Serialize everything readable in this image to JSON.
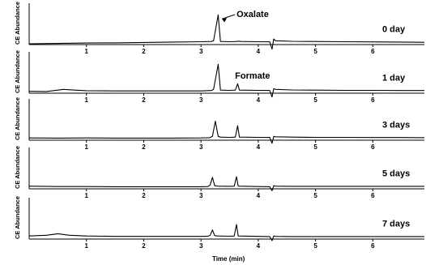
{
  "chart_data": {
    "type": "line",
    "layout": "stacked-panels",
    "x_range": [
      0,
      6.9
    ],
    "x_ticks": [
      "1",
      "2",
      "3",
      "4",
      "5",
      "6"
    ],
    "xlabel": "Time (min)",
    "ylabel": "CE Abundance",
    "grid": false,
    "panels": [
      {
        "label": "0 day",
        "points": [
          [
            0,
            0.02
          ],
          [
            0.5,
            0.03
          ],
          [
            1.0,
            0.04
          ],
          [
            1.5,
            0.045
          ],
          [
            2.0,
            0.055
          ],
          [
            2.5,
            0.065
          ],
          [
            3.0,
            0.075
          ],
          [
            3.18,
            0.08
          ],
          [
            3.22,
            0.1
          ],
          [
            3.3,
            0.78
          ],
          [
            3.34,
            0.08
          ],
          [
            3.5,
            0.075
          ],
          [
            3.62,
            0.08
          ],
          [
            3.66,
            0.09
          ],
          [
            3.7,
            0.08
          ],
          [
            4.0,
            0.075
          ],
          [
            4.2,
            0.072
          ],
          [
            4.24,
            -0.12
          ],
          [
            4.27,
            0.15
          ],
          [
            4.3,
            0.1
          ],
          [
            4.6,
            0.085
          ],
          [
            5.0,
            0.08
          ],
          [
            5.5,
            0.075
          ],
          [
            6.0,
            0.07
          ],
          [
            6.5,
            0.065
          ],
          [
            6.9,
            0.06
          ]
        ],
        "annotations": [
          {
            "text": "Oxalate",
            "at": [
              3.31,
              0.8
            ]
          }
        ]
      },
      {
        "label": "1 day",
        "points": [
          [
            0,
            0.05
          ],
          [
            0.3,
            0.045
          ],
          [
            0.6,
            0.1
          ],
          [
            0.8,
            0.08
          ],
          [
            1.0,
            0.065
          ],
          [
            1.5,
            0.06
          ],
          [
            2.0,
            0.06
          ],
          [
            2.5,
            0.06
          ],
          [
            3.0,
            0.06
          ],
          [
            3.18,
            0.07
          ],
          [
            3.22,
            0.1
          ],
          [
            3.3,
            0.76
          ],
          [
            3.34,
            0.08
          ],
          [
            3.5,
            0.075
          ],
          [
            3.6,
            0.08
          ],
          [
            3.64,
            0.25
          ],
          [
            3.67,
            0.08
          ],
          [
            4.0,
            0.075
          ],
          [
            4.2,
            0.072
          ],
          [
            4.24,
            -0.1
          ],
          [
            4.27,
            0.12
          ],
          [
            4.3,
            0.1
          ],
          [
            4.6,
            0.085
          ],
          [
            5.0,
            0.08
          ],
          [
            5.5,
            0.075
          ],
          [
            6.0,
            0.075
          ],
          [
            6.5,
            0.07
          ],
          [
            6.9,
            0.07
          ]
        ],
        "annotations": [
          {
            "text": "Formate",
            "at": [
              3.65,
              0.27
            ]
          }
        ]
      },
      {
        "label": "3 days",
        "points": [
          [
            0,
            0.06
          ],
          [
            0.5,
            0.055
          ],
          [
            1.0,
            0.06
          ],
          [
            1.5,
            0.055
          ],
          [
            2.0,
            0.055
          ],
          [
            2.5,
            0.055
          ],
          [
            3.0,
            0.06
          ],
          [
            3.15,
            0.065
          ],
          [
            3.2,
            0.1
          ],
          [
            3.25,
            0.5
          ],
          [
            3.3,
            0.1
          ],
          [
            3.34,
            0.08
          ],
          [
            3.5,
            0.075
          ],
          [
            3.6,
            0.08
          ],
          [
            3.64,
            0.38
          ],
          [
            3.67,
            0.08
          ],
          [
            4.0,
            0.075
          ],
          [
            4.2,
            0.072
          ],
          [
            4.24,
            -0.08
          ],
          [
            4.27,
            0.1
          ],
          [
            4.3,
            0.09
          ],
          [
            4.6,
            0.08
          ],
          [
            5.0,
            0.075
          ],
          [
            5.5,
            0.075
          ],
          [
            6.0,
            0.07
          ],
          [
            6.5,
            0.07
          ],
          [
            6.9,
            0.065
          ]
        ],
        "annotations": []
      },
      {
        "label": "5 days",
        "points": [
          [
            0,
            0.07
          ],
          [
            0.5,
            0.06
          ],
          [
            1.0,
            0.06
          ],
          [
            1.5,
            0.055
          ],
          [
            2.0,
            0.055
          ],
          [
            2.5,
            0.055
          ],
          [
            3.0,
            0.055
          ],
          [
            3.12,
            0.06
          ],
          [
            3.16,
            0.1
          ],
          [
            3.2,
            0.3
          ],
          [
            3.24,
            0.08
          ],
          [
            3.3,
            0.07
          ],
          [
            3.5,
            0.065
          ],
          [
            3.58,
            0.07
          ],
          [
            3.62,
            0.32
          ],
          [
            3.65,
            0.07
          ],
          [
            4.0,
            0.06
          ],
          [
            4.2,
            0.055
          ],
          [
            4.24,
            -0.05
          ],
          [
            4.27,
            0.08
          ],
          [
            4.3,
            0.07
          ],
          [
            4.6,
            0.065
          ],
          [
            5.0,
            0.065
          ],
          [
            5.5,
            0.065
          ],
          [
            6.0,
            0.065
          ],
          [
            6.5,
            0.065
          ],
          [
            6.9,
            0.065
          ]
        ],
        "annotations": []
      },
      {
        "label": "7 days",
        "points": [
          [
            0,
            0.08
          ],
          [
            0.3,
            0.1
          ],
          [
            0.5,
            0.14
          ],
          [
            0.7,
            0.1
          ],
          [
            1.0,
            0.08
          ],
          [
            1.5,
            0.07
          ],
          [
            2.0,
            0.07
          ],
          [
            2.5,
            0.07
          ],
          [
            3.0,
            0.07
          ],
          [
            3.12,
            0.075
          ],
          [
            3.16,
            0.1
          ],
          [
            3.2,
            0.24
          ],
          [
            3.24,
            0.09
          ],
          [
            3.3,
            0.08
          ],
          [
            3.5,
            0.075
          ],
          [
            3.58,
            0.08
          ],
          [
            3.62,
            0.38
          ],
          [
            3.65,
            0.08
          ],
          [
            4.0,
            0.07
          ],
          [
            4.2,
            0.065
          ],
          [
            4.24,
            -0.04
          ],
          [
            4.27,
            0.08
          ],
          [
            4.3,
            0.07
          ],
          [
            4.6,
            0.065
          ],
          [
            5.0,
            0.065
          ],
          [
            5.5,
            0.065
          ],
          [
            6.0,
            0.065
          ],
          [
            6.5,
            0.065
          ],
          [
            6.9,
            0.065
          ]
        ],
        "annotations": []
      }
    ]
  }
}
